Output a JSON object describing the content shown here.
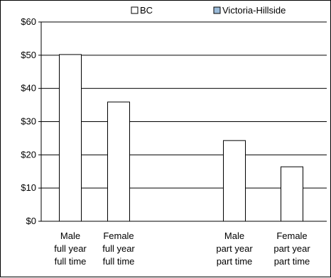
{
  "chart_data": {
    "type": "bar",
    "title": "",
    "xlabel": "",
    "ylabel": "",
    "ylim": [
      0,
      60
    ],
    "yticks": [
      "$0",
      "$10",
      "$20",
      "$30",
      "$40",
      "$50",
      "$60"
    ],
    "grid": true,
    "legend_position": "top-right",
    "categories": [
      [
        "Male",
        "full year",
        "full time"
      ],
      [
        "Female",
        "full year",
        "full time"
      ],
      [
        "Male",
        "part year",
        "part time"
      ],
      [
        "Female",
        "part year",
        "part time"
      ]
    ],
    "series": [
      {
        "name": "BC",
        "color": "#ffffff",
        "values": [
          50.2,
          35.9,
          24.3,
          16.4
        ]
      },
      {
        "name": "Victoria-Hillside",
        "color": "#9bbbd9",
        "values": [
          null,
          null,
          null,
          null
        ]
      }
    ]
  }
}
